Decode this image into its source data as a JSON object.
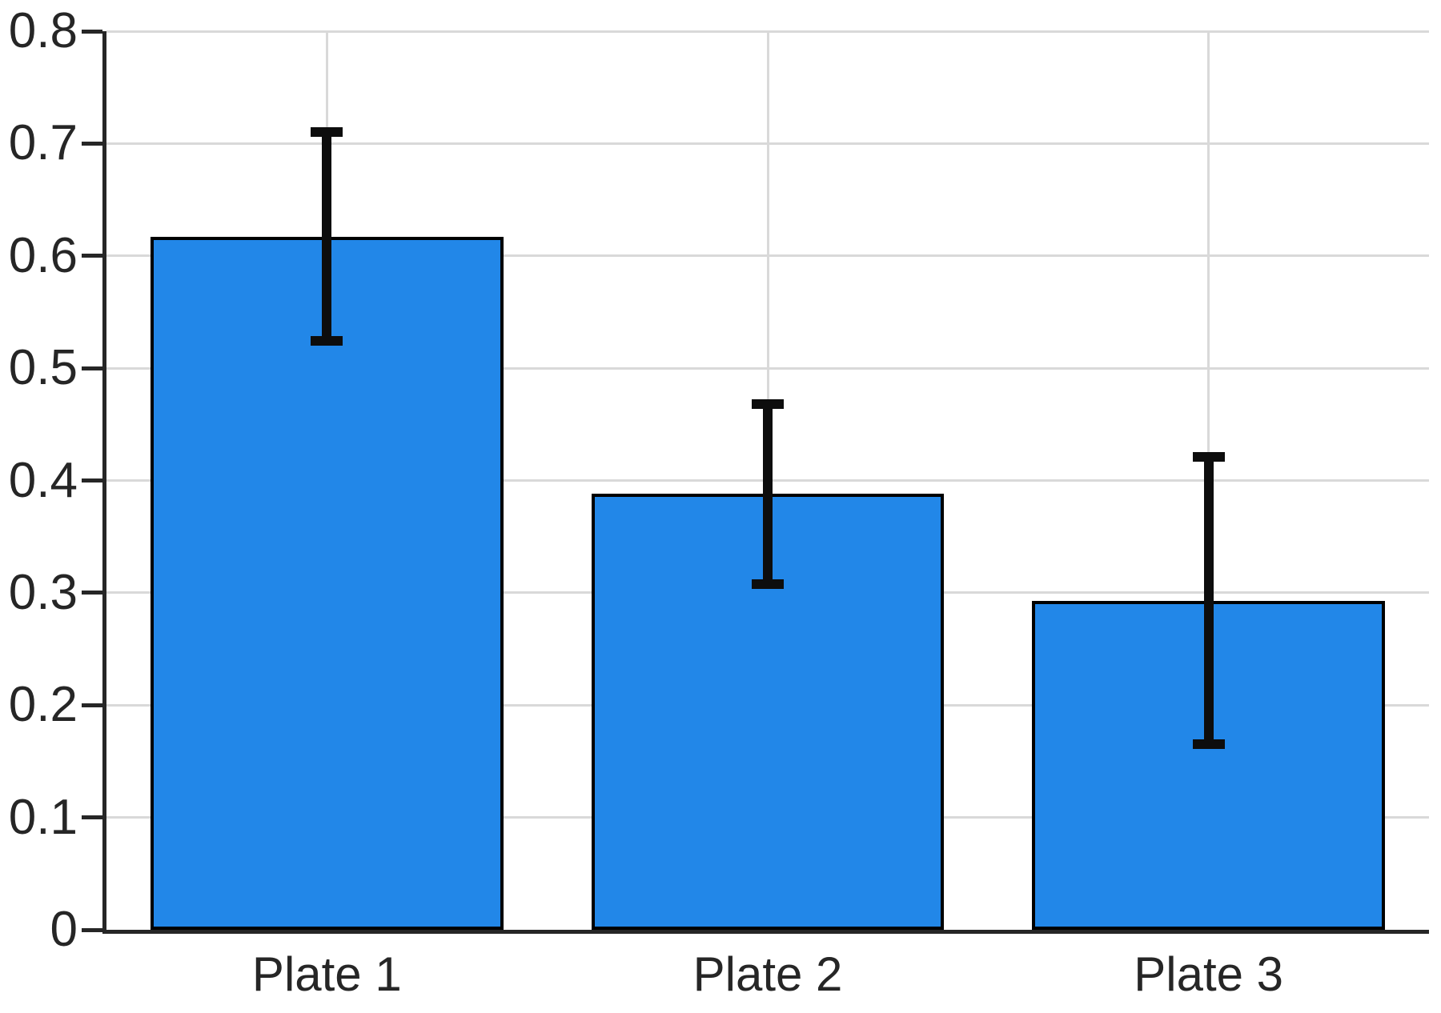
{
  "chart_data": {
    "type": "bar",
    "categories": [
      "Plate 1",
      "Plate 2",
      "Plate 3"
    ],
    "values": [
      0.617,
      0.388,
      0.293
    ],
    "error_bars": [
      0.093,
      0.08,
      0.128
    ],
    "error_bar_low": [
      0.524,
      0.308,
      0.165
    ],
    "error_bar_high": [
      0.71,
      0.468,
      0.421
    ],
    "title": "",
    "xlabel": "",
    "ylabel": "",
    "ylim": [
      0,
      0.8
    ],
    "ytick_step": 0.1,
    "yminor_step": 0.02,
    "ytick_labels": [
      "0",
      "0.1",
      "0.2",
      "0.3",
      "0.4",
      "0.5",
      "0.6",
      "0.7",
      "0.8"
    ],
    "bar_width_fraction": 0.8,
    "grid": {
      "major_horizontal": "solid",
      "minor_horizontal": "dotted",
      "vertical_at_category_centers": "solid"
    },
    "legend": "none",
    "colors": {
      "bar_fill": "#2287E8",
      "bar_edge": "#000000",
      "error_bar": "#0D0D0D",
      "axis": "#262626",
      "text": "#262626",
      "grid_major": "#D9D9D9",
      "grid_minor": "#CBCBCB",
      "background": "#FFFFFF"
    }
  }
}
